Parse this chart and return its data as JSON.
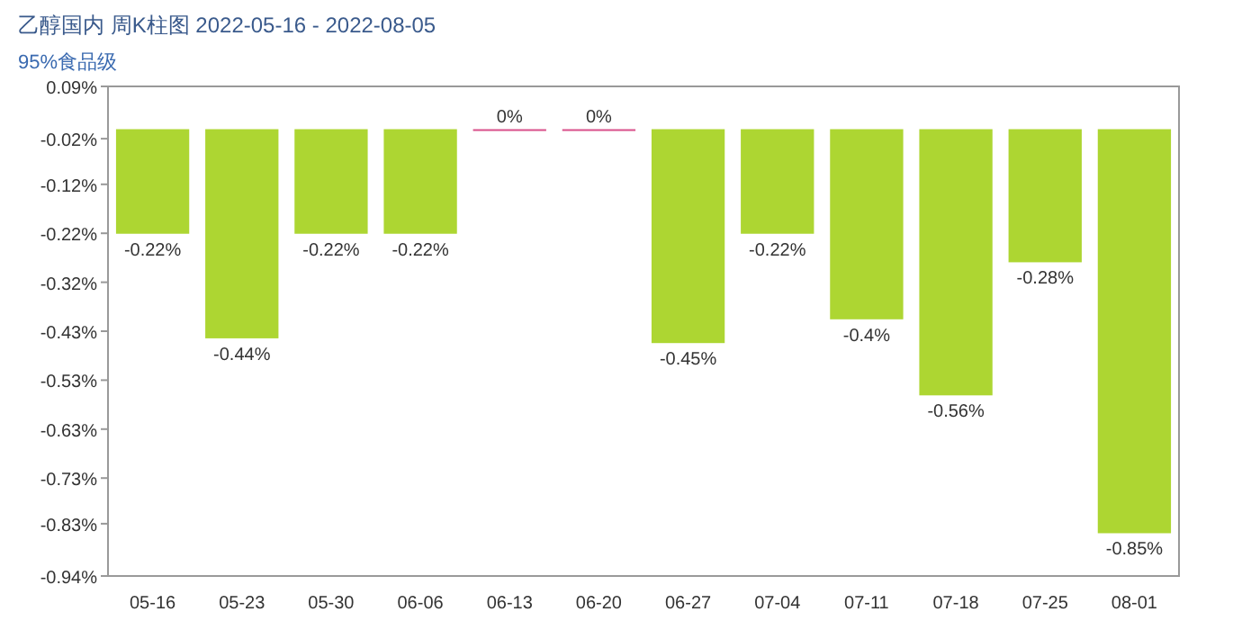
{
  "chart_data": {
    "type": "bar",
    "title": "乙醇国内 周K柱图 2022-05-16 - 2022-08-05",
    "subtitle": "95%食品级",
    "categories": [
      "05-16",
      "05-23",
      "05-30",
      "06-06",
      "06-13",
      "06-20",
      "06-27",
      "07-04",
      "07-11",
      "07-18",
      "07-25",
      "08-01"
    ],
    "values": [
      -0.22,
      -0.44,
      -0.22,
      -0.22,
      0,
      0,
      -0.45,
      -0.22,
      -0.4,
      -0.56,
      -0.28,
      -0.85
    ],
    "value_labels": [
      "-0.22%",
      "-0.44%",
      "-0.22%",
      "-0.22%",
      "0%",
      "0%",
      "-0.45%",
      "-0.22%",
      "-0.4%",
      "-0.56%",
      "-0.28%",
      "-0.85%"
    ],
    "colors": [
      "#add632",
      "#add632",
      "#add632",
      "#add632",
      "#d9508a",
      "#d9508a",
      "#add632",
      "#add632",
      "#add632",
      "#add632",
      "#add632",
      "#add632"
    ],
    "ylim": [
      -0.94,
      0.09
    ],
    "yticks": [
      {
        "value": 0.09,
        "label": "0.09%"
      },
      {
        "value": -0.02,
        "label": "-0.02%"
      },
      {
        "value": -0.116,
        "label": "-0.12%"
      },
      {
        "value": -0.219,
        "label": "-0.22%"
      },
      {
        "value": -0.322,
        "label": "-0.32%"
      },
      {
        "value": -0.425,
        "label": "-0.43%"
      },
      {
        "value": -0.528,
        "label": "-0.53%"
      },
      {
        "value": -0.631,
        "label": "-0.63%"
      },
      {
        "value": -0.734,
        "label": "-0.73%"
      },
      {
        "value": -0.83,
        "label": "-0.83%"
      },
      {
        "value": -0.94,
        "label": "-0.94%"
      }
    ],
    "grid": false
  }
}
